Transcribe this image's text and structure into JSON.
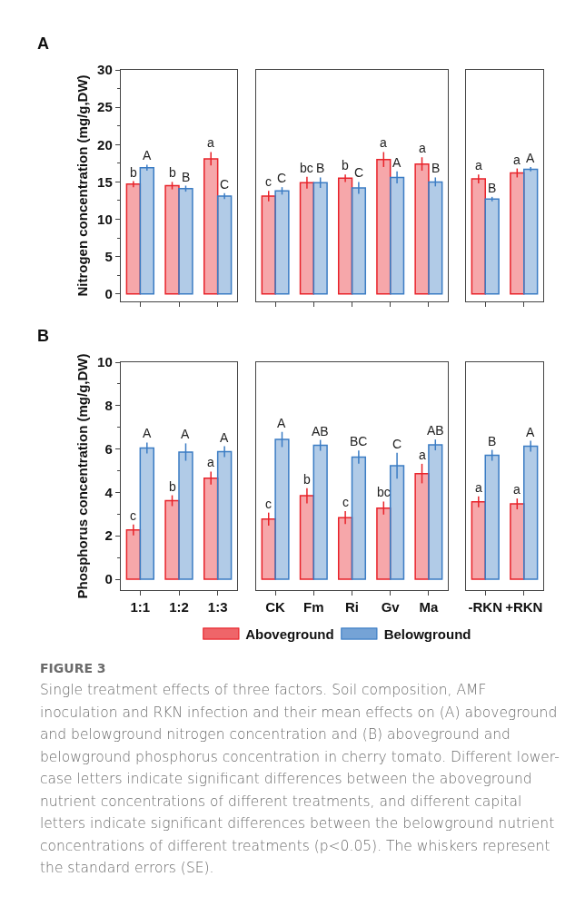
{
  "chart_data": [
    {
      "type": "bar",
      "title": "A",
      "ylabel": "Nitrogen concentration (mg/g,DW)",
      "categories": [
        null,
        null,
        null
      ],
      "ylim": [
        -1,
        30
      ],
      "yticks": [
        0,
        5,
        10,
        15,
        20,
        25,
        30
      ],
      "tick_labels": "y",
      "legend": false,
      "series": [
        {
          "color": "#e8232a",
          "values": [
            14.7,
            14.5,
            18.1
          ],
          "errors": [
            0.4,
            0.5,
            0.9
          ],
          "value_labels": [
            "b",
            "b",
            "a"
          ]
        },
        {
          "color": "#3b7cc4",
          "values": [
            16.9,
            14.1,
            13.1
          ],
          "errors": [
            0.4,
            0.4,
            0.4
          ],
          "value_labels": [
            "A",
            "B",
            "C"
          ]
        }
      ]
    },
    {
      "type": "bar",
      "categories": [
        null,
        null,
        null,
        null,
        null
      ],
      "ylim": [
        -1,
        30
      ],
      "tick_labels": false,
      "legend": false,
      "series": [
        {
          "color": "#e8232a",
          "values": [
            13.1,
            14.9,
            15.5,
            18.0,
            17.4
          ],
          "errors": [
            0.7,
            0.8,
            0.5,
            1.0,
            0.9
          ],
          "value_labels": [
            "c",
            "bc",
            "b",
            "a",
            "a"
          ]
        },
        {
          "color": "#3b7cc4",
          "values": [
            13.8,
            14.9,
            14.2,
            15.6,
            15.0
          ],
          "errors": [
            0.5,
            0.7,
            0.8,
            0.8,
            0.6
          ],
          "value_labels": [
            "C",
            "B",
            "C",
            "A",
            "B"
          ]
        }
      ]
    },
    {
      "type": "bar",
      "categories": [
        null,
        null
      ],
      "ylim": [
        -1,
        30
      ],
      "tick_labels": false,
      "legend": false,
      "series": [
        {
          "color": "#e8232a",
          "values": [
            15.4,
            16.2
          ],
          "errors": [
            0.6,
            0.6
          ],
          "value_labels": [
            "a",
            "a"
          ]
        },
        {
          "color": "#3b7cc4",
          "values": [
            12.7,
            16.7
          ],
          "errors": [
            0.3,
            0.3
          ],
          "value_labels": [
            "B",
            "A"
          ]
        }
      ]
    },
    {
      "type": "bar",
      "title": "B",
      "ylabel": "Phosphorus concentration (mg/g,DW)",
      "categories": [
        "1:1",
        "1:2",
        "1:3"
      ],
      "ylim": [
        -0.5,
        10
      ],
      "yticks": [
        0,
        2,
        4,
        6,
        8,
        10
      ],
      "legend": false,
      "series": [
        {
          "color": "#e8232a",
          "values": [
            2.27,
            3.62,
            4.66
          ],
          "errors": [
            0.25,
            0.25,
            0.3
          ],
          "value_labels": [
            "c",
            "b",
            "a"
          ]
        },
        {
          "color": "#3b7cc4",
          "values": [
            6.05,
            5.86,
            5.88
          ],
          "errors": [
            0.25,
            0.4,
            0.25
          ],
          "value_labels": [
            "A",
            "A",
            "A"
          ]
        }
      ]
    },
    {
      "type": "bar",
      "categories": [
        "CK",
        "Fm",
        "Ri",
        "Gv",
        "Ma"
      ],
      "ylim": [
        -0.5,
        10
      ],
      "tick_labels": "x",
      "legend": "bottom",
      "series": [
        {
          "name": "Aboveground",
          "color": "#e8232a",
          "values": [
            2.77,
            3.85,
            2.84,
            3.28,
            4.87
          ],
          "errors": [
            0.3,
            0.35,
            0.3,
            0.3,
            0.45
          ],
          "value_labels": [
            "c",
            "b",
            "c",
            "bc",
            "a"
          ]
        },
        {
          "name": "Belowground",
          "color": "#3b7cc4",
          "values": [
            6.44,
            6.17,
            5.63,
            5.23,
            6.19
          ],
          "errors": [
            0.35,
            0.25,
            0.3,
            0.6,
            0.25
          ],
          "value_labels": [
            "A",
            "AB",
            "BC",
            "C",
            "AB"
          ]
        }
      ]
    },
    {
      "type": "bar",
      "categories": [
        "-RKN",
        "+RKN"
      ],
      "ylim": [
        -0.5,
        10
      ],
      "tick_labels": "x",
      "legend": false,
      "annotations": [
        "FIGURE 3",
        "Single treatment effects of three factors. Soil composition, AMF inoculation and RKN infection and their mean effects on (A) aboveground and belowground nitrogen concentration and (B) aboveground and belowground phosphorus concentration in cherry tomato. Different lower-case letters indicate significant differences between the aboveground nutrient concentrations of different treatments, and different capital letters indicate significant differences between the belowground nutrient concentrations of different treatments (p<0.05). The whiskers represent the standard errors (SE)."
      ],
      "series": [
        {
          "color": "#e8232a",
          "values": [
            3.57,
            3.47
          ],
          "errors": [
            0.25,
            0.25
          ],
          "value_labels": [
            "a",
            "a"
          ]
        },
        {
          "color": "#3b7cc4",
          "values": [
            5.71,
            6.13
          ],
          "errors": [
            0.25,
            0.25
          ],
          "value_labels": [
            "B",
            "A"
          ]
        }
      ]
    }
  ]
}
